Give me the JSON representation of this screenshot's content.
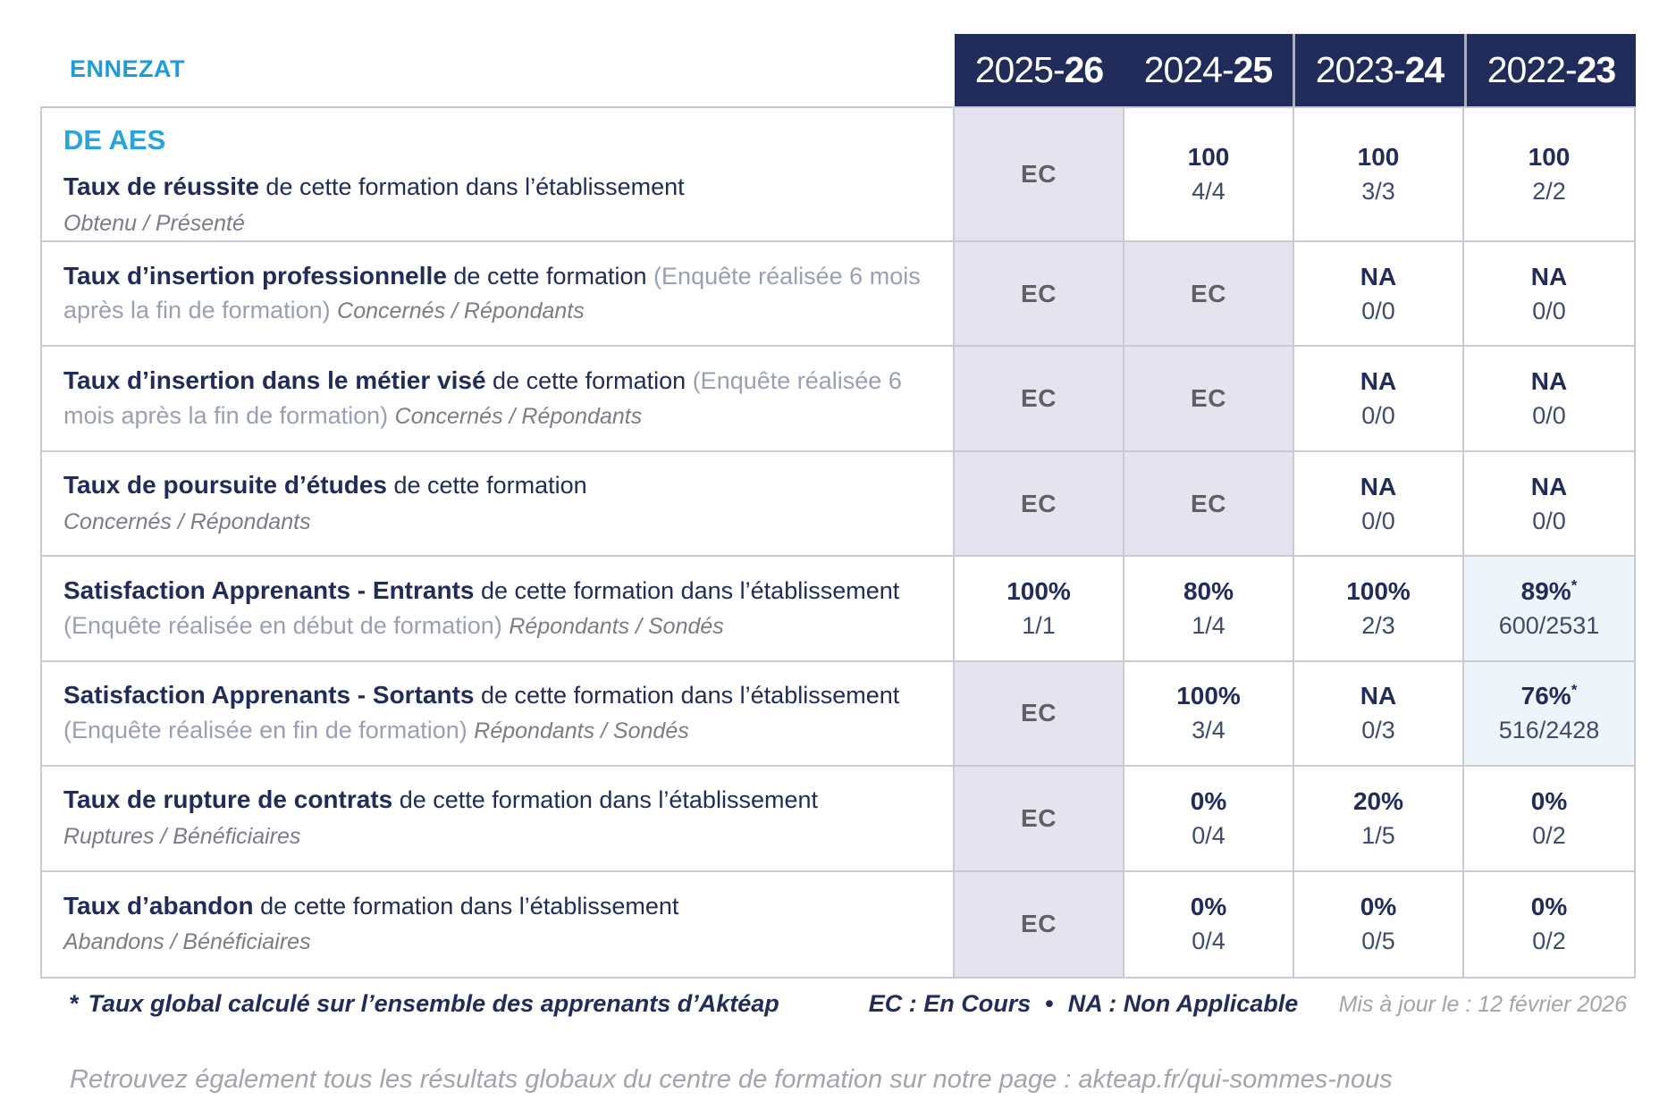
{
  "header": {
    "site": "ENNEZAT",
    "course": "DE AES",
    "years": [
      {
        "prefix": "2025-",
        "suffix": "26"
      },
      {
        "prefix": "2024-",
        "suffix": "25"
      },
      {
        "prefix": "2023-",
        "suffix": "24"
      },
      {
        "prefix": "2022-",
        "suffix": "23"
      }
    ]
  },
  "rows": [
    {
      "title": "Taux de réussite",
      "desc": "de cette formation dans l’établissement",
      "note": "",
      "sub": "Obtenu / Présenté",
      "sub_own_line": true,
      "cells": [
        {
          "type": "ec",
          "value": "EC"
        },
        {
          "type": "value",
          "value": "100",
          "fraction": "4/4"
        },
        {
          "type": "value",
          "value": "100",
          "fraction": "3/3"
        },
        {
          "type": "value",
          "value": "100",
          "fraction": "2/2"
        }
      ]
    },
    {
      "title": "Taux d’insertion professionnelle",
      "desc": "de cette formation",
      "note": "(Enquête réalisée 6 mois après la fin de formation)",
      "sub": "Concernés / Répondants",
      "sub_own_line": false,
      "cells": [
        {
          "type": "ec",
          "value": "EC"
        },
        {
          "type": "ec",
          "value": "EC"
        },
        {
          "type": "value",
          "value": "NA",
          "fraction": "0/0"
        },
        {
          "type": "value",
          "value": "NA",
          "fraction": "0/0"
        }
      ]
    },
    {
      "title": "Taux d’insertion dans le métier visé",
      "desc": "de cette formation",
      "note": "(Enquête réalisée 6 mois après la fin de formation)",
      "sub": "Concernés / Répondants",
      "sub_own_line": false,
      "cells": [
        {
          "type": "ec",
          "value": "EC"
        },
        {
          "type": "ec",
          "value": "EC"
        },
        {
          "type": "value",
          "value": "NA",
          "fraction": "0/0"
        },
        {
          "type": "value",
          "value": "NA",
          "fraction": "0/0"
        }
      ]
    },
    {
      "title": "Taux de poursuite d’études",
      "desc": "de cette formation",
      "note": "",
      "sub": "Concernés / Répondants",
      "sub_own_line": true,
      "cells": [
        {
          "type": "ec",
          "value": "EC"
        },
        {
          "type": "ec",
          "value": "EC"
        },
        {
          "type": "value",
          "value": "NA",
          "fraction": "0/0"
        },
        {
          "type": "value",
          "value": "NA",
          "fraction": "0/0"
        }
      ]
    },
    {
      "title": "Satisfaction Apprenants - Entrants",
      "desc": "de cette formation dans l’établissement",
      "note": "(Enquête réalisée en début de formation)",
      "sub": "Répondants / Sondés",
      "sub_own_line": false,
      "cells": [
        {
          "type": "value",
          "value": "100%",
          "fraction": "1/1"
        },
        {
          "type": "value",
          "value": "80%",
          "fraction": "1/4"
        },
        {
          "type": "value",
          "value": "100%",
          "fraction": "2/3"
        },
        {
          "type": "highlight",
          "value": "89%",
          "asterisk": "*",
          "fraction": "600/2531"
        }
      ]
    },
    {
      "title": "Satisfaction Apprenants - Sortants",
      "desc": "de cette formation dans l’établissement",
      "note": "(Enquête réalisée en fin de formation)",
      "sub": "Répondants / Sondés",
      "sub_own_line": false,
      "cells": [
        {
          "type": "ec",
          "value": "EC"
        },
        {
          "type": "value",
          "value": "100%",
          "fraction": "3/4"
        },
        {
          "type": "value",
          "value": "NA",
          "fraction": "0/3"
        },
        {
          "type": "highlight",
          "value": "76%",
          "asterisk": "*",
          "fraction": "516/2428"
        }
      ]
    },
    {
      "title": "Taux de rupture de contrats",
      "desc": "de cette formation dans l’établissement",
      "note": "",
      "sub": "Ruptures / Bénéficiaires",
      "sub_own_line": true,
      "cells": [
        {
          "type": "ec",
          "value": "EC"
        },
        {
          "type": "value",
          "value": "0%",
          "fraction": "0/4"
        },
        {
          "type": "value",
          "value": "20%",
          "fraction": "1/5"
        },
        {
          "type": "value",
          "value": "0%",
          "fraction": "0/2"
        }
      ]
    },
    {
      "title": "Taux d’abandon",
      "desc": "de cette formation dans l’établissement",
      "note": "",
      "sub": "Abandons / Bénéficiaires",
      "sub_own_line": true,
      "cells": [
        {
          "type": "ec",
          "value": "EC"
        },
        {
          "type": "value",
          "value": "0%",
          "fraction": "0/4"
        },
        {
          "type": "value",
          "value": "0%",
          "fraction": "0/5"
        },
        {
          "type": "value",
          "value": "0%",
          "fraction": "0/2"
        }
      ]
    }
  ],
  "footer": {
    "asterisk": "*",
    "asterisk_note": "Taux global calculé sur l’ensemble des apprenants d’Aktéap",
    "legend_ec": "EC : En Cours",
    "legend_sep": "•",
    "legend_na": "NA : Non Applicable",
    "updated": "Mis à jour le : 12 février 2026",
    "bottom_note": "Retrouvez également tous les résultats globaux du centre de formation sur notre page : akteap.fr/qui-sommes-nous"
  },
  "colors": {
    "navy": "#222C5A",
    "accent_blue": "#1E9CD9",
    "ec_background": "#E4E3EE",
    "highlight_background": "#EDF5FA",
    "border": "#C9CAD5",
    "gray_text": "#A2A4AA"
  }
}
